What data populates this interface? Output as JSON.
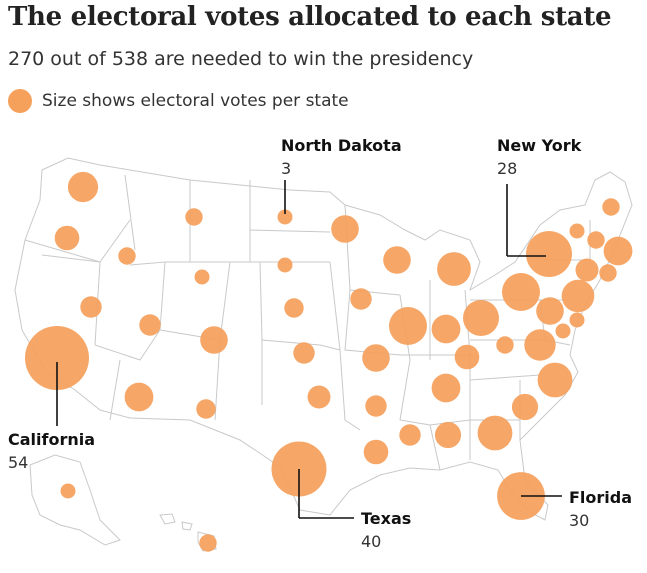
{
  "title": "The electoral votes allocated to each state",
  "subtitle": "270 out of 538 are needed to win the presidency",
  "legend": {
    "text": "Size shows electoral votes per state",
    "color": "#f5a05b"
  },
  "colors": {
    "bubble": "#f5a05b",
    "state_fill": "#ffffff",
    "state_border": "#c9c9c9"
  },
  "callouts": {
    "north_dakota": {
      "name": "North Dakota",
      "votes": "3"
    },
    "new_york": {
      "name": "New York",
      "votes": "28"
    },
    "california": {
      "name": "California",
      "votes": "54"
    },
    "texas": {
      "name": "Texas",
      "votes": "40"
    },
    "florida": {
      "name": "Florida",
      "votes": "30"
    }
  },
  "states": [
    {
      "abbr": "WA",
      "votes": 12
    },
    {
      "abbr": "OR",
      "votes": 8
    },
    {
      "abbr": "CA",
      "votes": 54
    },
    {
      "abbr": "NV",
      "votes": 6
    },
    {
      "abbr": "ID",
      "votes": 4
    },
    {
      "abbr": "MT",
      "votes": 4
    },
    {
      "abbr": "WY",
      "votes": 3
    },
    {
      "abbr": "UT",
      "votes": 6
    },
    {
      "abbr": "AZ",
      "votes": 11
    },
    {
      "abbr": "CO",
      "votes": 10
    },
    {
      "abbr": "NM",
      "votes": 5
    },
    {
      "abbr": "ND",
      "votes": 3
    },
    {
      "abbr": "SD",
      "votes": 3
    },
    {
      "abbr": "NE",
      "votes": 5
    },
    {
      "abbr": "KS",
      "votes": 6
    },
    {
      "abbr": "OK",
      "votes": 7
    },
    {
      "abbr": "TX",
      "votes": 40
    },
    {
      "abbr": "MN",
      "votes": 10
    },
    {
      "abbr": "IA",
      "votes": 6
    },
    {
      "abbr": "MO",
      "votes": 10
    },
    {
      "abbr": "AR",
      "votes": 6
    },
    {
      "abbr": "LA",
      "votes": 8
    },
    {
      "abbr": "WI",
      "votes": 10
    },
    {
      "abbr": "IL",
      "votes": 19
    },
    {
      "abbr": "MI",
      "votes": 15
    },
    {
      "abbr": "IN",
      "votes": 11
    },
    {
      "abbr": "OH",
      "votes": 17
    },
    {
      "abbr": "KY",
      "votes": 8
    },
    {
      "abbr": "TN",
      "votes": 11
    },
    {
      "abbr": "MS",
      "votes": 6
    },
    {
      "abbr": "AL",
      "votes": 9
    },
    {
      "abbr": "GA",
      "votes": 16
    },
    {
      "abbr": "FL",
      "votes": 30
    },
    {
      "abbr": "SC",
      "votes": 9
    },
    {
      "abbr": "NC",
      "votes": 16
    },
    {
      "abbr": "VA",
      "votes": 13
    },
    {
      "abbr": "WV",
      "votes": 4
    },
    {
      "abbr": "PA",
      "votes": 19
    },
    {
      "abbr": "NY",
      "votes": 28
    },
    {
      "abbr": "VT",
      "votes": 3
    },
    {
      "abbr": "NH",
      "votes": 4
    },
    {
      "abbr": "ME",
      "votes": 4
    },
    {
      "abbr": "MA",
      "votes": 11
    },
    {
      "abbr": "RI",
      "votes": 4
    },
    {
      "abbr": "CT",
      "votes": 7
    },
    {
      "abbr": "NJ",
      "votes": 14
    },
    {
      "abbr": "DE",
      "votes": 3
    },
    {
      "abbr": "MD",
      "votes": 10
    },
    {
      "abbr": "DC",
      "votes": 3
    },
    {
      "abbr": "AK",
      "votes": 3
    },
    {
      "abbr": "HI",
      "votes": 4
    }
  ]
}
